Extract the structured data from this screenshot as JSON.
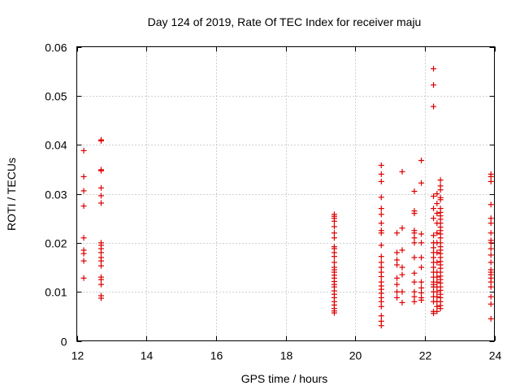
{
  "chart_data": {
    "type": "scatter",
    "title": "Day 124 of 2019, Rate Of TEC Index for receiver maju",
    "xlabel": "GPS time / hours",
    "ylabel": "ROTI / TECUs",
    "xlim": [
      12,
      24
    ],
    "ylim": [
      0,
      0.06
    ],
    "xticks": [
      12,
      14,
      16,
      18,
      20,
      22,
      24
    ],
    "xtick_labels": [
      "12",
      "14",
      "16",
      "18",
      "20",
      "22",
      "24"
    ],
    "yticks": [
      0,
      0.01,
      0.02,
      0.03,
      0.04,
      0.05,
      0.06
    ],
    "ytick_labels": [
      "0",
      "0.01",
      "0.02",
      "0.03",
      "0.04",
      "0.05",
      "0.06"
    ],
    "grid": true,
    "marker": "+",
    "marker_color": "#dd0000",
    "series": [
      {
        "name": "ROTI",
        "points": [
          [
            12.2,
            0.0388
          ],
          [
            12.2,
            0.0335
          ],
          [
            12.2,
            0.0306
          ],
          [
            12.2,
            0.0275
          ],
          [
            12.2,
            0.021
          ],
          [
            12.2,
            0.0185
          ],
          [
            12.2,
            0.0178
          ],
          [
            12.2,
            0.0163
          ],
          [
            12.2,
            0.0128
          ],
          [
            12.7,
            0.041
          ],
          [
            12.7,
            0.0408
          ],
          [
            12.7,
            0.0349
          ],
          [
            12.7,
            0.0347
          ],
          [
            12.7,
            0.0312
          ],
          [
            12.7,
            0.0296
          ],
          [
            12.7,
            0.0281
          ],
          [
            12.7,
            0.02
          ],
          [
            12.7,
            0.0195
          ],
          [
            12.7,
            0.0188
          ],
          [
            12.7,
            0.018
          ],
          [
            12.7,
            0.017
          ],
          [
            12.7,
            0.0163
          ],
          [
            12.7,
            0.0153
          ],
          [
            12.7,
            0.013
          ],
          [
            12.7,
            0.0125
          ],
          [
            12.7,
            0.0115
          ],
          [
            12.7,
            0.0092
          ],
          [
            12.7,
            0.0087
          ],
          [
            19.4,
            0.0258
          ],
          [
            19.4,
            0.0254
          ],
          [
            19.4,
            0.025
          ],
          [
            19.4,
            0.0244
          ],
          [
            19.4,
            0.0233
          ],
          [
            19.4,
            0.022
          ],
          [
            19.4,
            0.021
          ],
          [
            19.4,
            0.0192
          ],
          [
            19.4,
            0.0188
          ],
          [
            19.4,
            0.018
          ],
          [
            19.4,
            0.0172
          ],
          [
            19.4,
            0.016
          ],
          [
            19.4,
            0.015
          ],
          [
            19.4,
            0.0145
          ],
          [
            19.4,
            0.014
          ],
          [
            19.4,
            0.0134
          ],
          [
            19.4,
            0.0128
          ],
          [
            19.4,
            0.0121
          ],
          [
            19.4,
            0.0115
          ],
          [
            19.4,
            0.011
          ],
          [
            19.4,
            0.0102
          ],
          [
            19.4,
            0.0095
          ],
          [
            19.4,
            0.0088
          ],
          [
            19.4,
            0.008
          ],
          [
            19.4,
            0.0073
          ],
          [
            19.4,
            0.0066
          ],
          [
            19.4,
            0.0061
          ],
          [
            19.4,
            0.0057
          ],
          [
            20.75,
            0.0358
          ],
          [
            20.75,
            0.034
          ],
          [
            20.75,
            0.0325
          ],
          [
            20.75,
            0.0293
          ],
          [
            20.75,
            0.027
          ],
          [
            20.75,
            0.0258
          ],
          [
            20.75,
            0.024
          ],
          [
            20.75,
            0.0225
          ],
          [
            20.75,
            0.022
          ],
          [
            20.75,
            0.0195
          ],
          [
            20.75,
            0.0172
          ],
          [
            20.75,
            0.016
          ],
          [
            20.75,
            0.015
          ],
          [
            20.75,
            0.014
          ],
          [
            20.75,
            0.0131
          ],
          [
            20.75,
            0.012
          ],
          [
            20.75,
            0.0112
          ],
          [
            20.75,
            0.0105
          ],
          [
            20.75,
            0.0097
          ],
          [
            20.75,
            0.0088
          ],
          [
            20.75,
            0.008
          ],
          [
            20.75,
            0.007
          ],
          [
            20.75,
            0.0051
          ],
          [
            20.75,
            0.004
          ],
          [
            20.75,
            0.0031
          ],
          [
            21.2,
            0.022
          ],
          [
            21.2,
            0.018
          ],
          [
            21.2,
            0.0165
          ],
          [
            21.2,
            0.0155
          ],
          [
            21.2,
            0.0128
          ],
          [
            21.2,
            0.0115
          ],
          [
            21.2,
            0.01
          ],
          [
            21.2,
            0.0088
          ],
          [
            21.35,
            0.0345
          ],
          [
            21.35,
            0.023
          ],
          [
            21.35,
            0.0185
          ],
          [
            21.35,
            0.015
          ],
          [
            21.35,
            0.0135
          ],
          [
            21.35,
            0.01
          ],
          [
            21.35,
            0.0078
          ],
          [
            21.7,
            0.0305
          ],
          [
            21.7,
            0.0265
          ],
          [
            21.7,
            0.026
          ],
          [
            21.7,
            0.0225
          ],
          [
            21.7,
            0.022
          ],
          [
            21.7,
            0.021
          ],
          [
            21.7,
            0.02
          ],
          [
            21.7,
            0.017
          ],
          [
            21.7,
            0.0138
          ],
          [
            21.7,
            0.012
          ],
          [
            21.7,
            0.01
          ],
          [
            21.7,
            0.009
          ],
          [
            21.7,
            0.008
          ],
          [
            21.9,
            0.0368
          ],
          [
            21.9,
            0.0322
          ],
          [
            21.9,
            0.0218
          ],
          [
            21.9,
            0.02
          ],
          [
            21.9,
            0.017
          ],
          [
            21.9,
            0.015
          ],
          [
            21.9,
            0.012
          ],
          [
            21.9,
            0.0108
          ],
          [
            21.9,
            0.0098
          ],
          [
            21.9,
            0.0088
          ],
          [
            21.9,
            0.0083
          ],
          [
            22.25,
            0.0555
          ],
          [
            22.25,
            0.0522
          ],
          [
            22.25,
            0.0478
          ],
          [
            22.25,
            0.0295
          ],
          [
            22.25,
            0.027
          ],
          [
            22.25,
            0.025
          ],
          [
            22.25,
            0.0215
          ],
          [
            22.25,
            0.02
          ],
          [
            22.25,
            0.019
          ],
          [
            22.25,
            0.018
          ],
          [
            22.25,
            0.017
          ],
          [
            22.25,
            0.016
          ],
          [
            22.25,
            0.015
          ],
          [
            22.25,
            0.014
          ],
          [
            22.25,
            0.013
          ],
          [
            22.25,
            0.012
          ],
          [
            22.25,
            0.0115
          ],
          [
            22.25,
            0.011
          ],
          [
            22.25,
            0.01
          ],
          [
            22.25,
            0.009
          ],
          [
            22.25,
            0.008
          ],
          [
            22.25,
            0.006
          ],
          [
            22.25,
            0.0056
          ],
          [
            22.35,
            0.03
          ],
          [
            22.35,
            0.028
          ],
          [
            22.35,
            0.026
          ],
          [
            22.35,
            0.024
          ],
          [
            22.35,
            0.022
          ],
          [
            22.35,
            0.02
          ],
          [
            22.35,
            0.018
          ],
          [
            22.35,
            0.016
          ],
          [
            22.35,
            0.014
          ],
          [
            22.35,
            0.013
          ],
          [
            22.35,
            0.012
          ],
          [
            22.35,
            0.011
          ],
          [
            22.35,
            0.01
          ],
          [
            22.35,
            0.009
          ],
          [
            22.35,
            0.008
          ],
          [
            22.35,
            0.007
          ],
          [
            22.35,
            0.006
          ],
          [
            22.45,
            0.0328
          ],
          [
            22.45,
            0.0316
          ],
          [
            22.45,
            0.0308
          ],
          [
            22.45,
            0.0292
          ],
          [
            22.45,
            0.0288
          ],
          [
            22.45,
            0.027
          ],
          [
            22.45,
            0.0262
          ],
          [
            22.45,
            0.0255
          ],
          [
            22.45,
            0.0248
          ],
          [
            22.45,
            0.024
          ],
          [
            22.45,
            0.0232
          ],
          [
            22.45,
            0.0225
          ],
          [
            22.45,
            0.0218
          ],
          [
            22.45,
            0.021
          ],
          [
            22.45,
            0.02
          ],
          [
            22.45,
            0.0192
          ],
          [
            22.45,
            0.0185
          ],
          [
            22.45,
            0.0178
          ],
          [
            22.45,
            0.017
          ],
          [
            22.45,
            0.0162
          ],
          [
            22.45,
            0.0155
          ],
          [
            22.45,
            0.0148
          ],
          [
            22.45,
            0.014
          ],
          [
            22.45,
            0.0132
          ],
          [
            22.45,
            0.0125
          ],
          [
            22.45,
            0.0118
          ],
          [
            22.45,
            0.011
          ],
          [
            22.45,
            0.0103
          ],
          [
            22.45,
            0.0095
          ],
          [
            22.45,
            0.0088
          ],
          [
            22.45,
            0.008
          ],
          [
            22.45,
            0.0072
          ],
          [
            22.45,
            0.0066
          ],
          [
            23.9,
            0.034
          ],
          [
            23.9,
            0.0335
          ],
          [
            23.9,
            0.0325
          ],
          [
            23.9,
            0.0278
          ],
          [
            23.9,
            0.025
          ],
          [
            23.9,
            0.024
          ],
          [
            23.9,
            0.022
          ],
          [
            23.9,
            0.0205
          ],
          [
            23.9,
            0.02
          ],
          [
            23.9,
            0.0188
          ],
          [
            23.9,
            0.0175
          ],
          [
            23.9,
            0.016
          ],
          [
            23.9,
            0.0145
          ],
          [
            23.9,
            0.014
          ],
          [
            23.9,
            0.0135
          ],
          [
            23.9,
            0.0128
          ],
          [
            23.9,
            0.012
          ],
          [
            23.9,
            0.011
          ],
          [
            23.9,
            0.009
          ],
          [
            23.9,
            0.0075
          ],
          [
            23.9,
            0.0045
          ]
        ]
      }
    ]
  }
}
